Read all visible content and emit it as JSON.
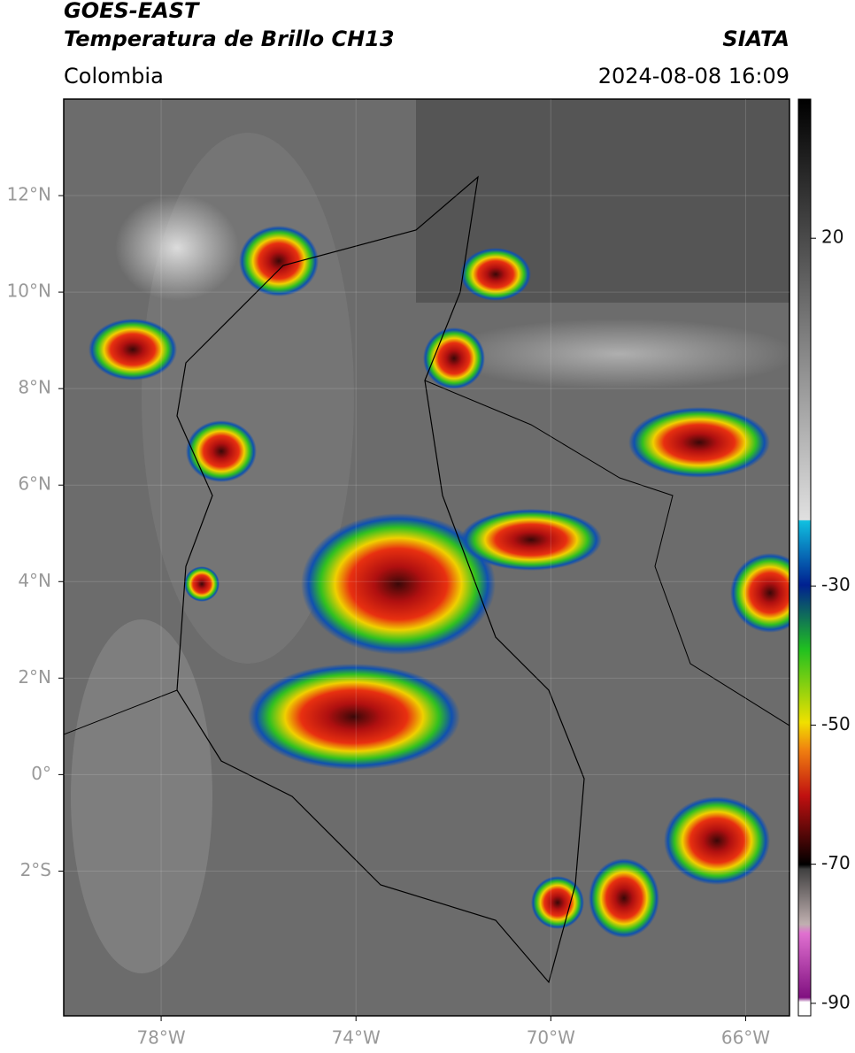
{
  "header": {
    "satellite": "GOES-EAST",
    "product": "Temperatura de Brillo CH13",
    "source": "SIATA",
    "region": "Colombia",
    "datetime": "2024-08-08 16:09"
  },
  "map": {
    "xlim": [
      -80,
      -65.1
    ],
    "ylim": [
      -5,
      14
    ],
    "xticks": [
      {
        "value": -78,
        "label": "78°W"
      },
      {
        "value": -74,
        "label": "74°W"
      },
      {
        "value": -70,
        "label": "70°W"
      },
      {
        "value": -66,
        "label": "66°W"
      }
    ],
    "yticks": [
      {
        "value": 12,
        "label": "12°N"
      },
      {
        "value": 10,
        "label": "10°N"
      },
      {
        "value": 8,
        "label": "8°N"
      },
      {
        "value": 6,
        "label": "6°N"
      },
      {
        "value": 4,
        "label": "4°N"
      },
      {
        "value": 2,
        "label": "2°N"
      },
      {
        "value": 0,
        "label": "0°"
      },
      {
        "value": -2,
        "label": "2°S"
      }
    ]
  },
  "colorbar": {
    "lim": [
      -91.8,
      40
    ],
    "ticks": [
      20,
      -30,
      -50,
      -70,
      -90
    ]
  }
}
